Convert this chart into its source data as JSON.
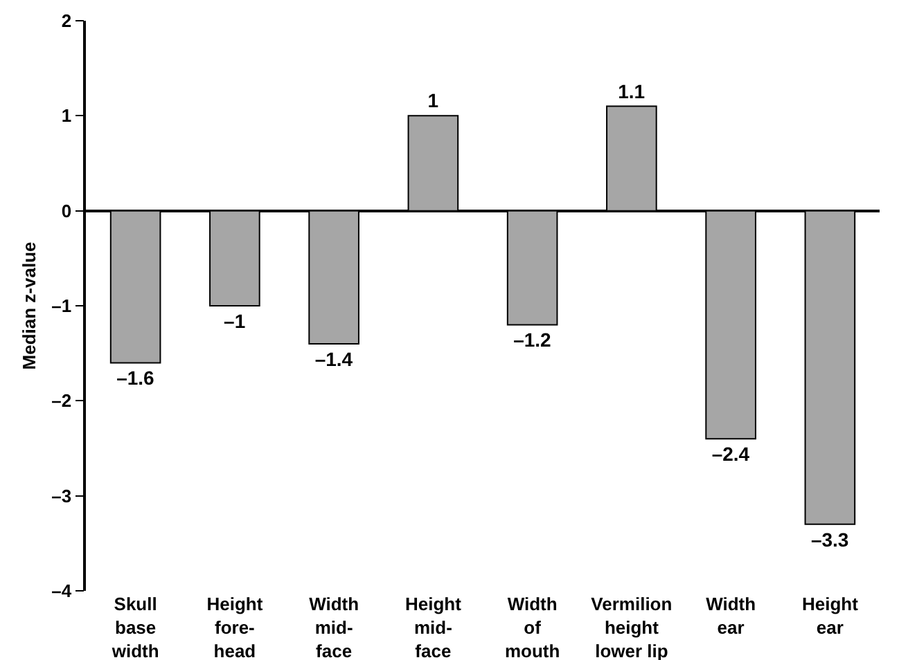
{
  "chart_data": {
    "type": "bar",
    "categories": [
      "Skull\nbase\nwidth",
      "Height\nfore-\nhead",
      "Width\nmid-\nface",
      "Height\nmid-\nface",
      "Width\nof\nmouth",
      "Vermilion\nheight\nlower lip",
      "Width\near",
      "Height\near"
    ],
    "values": [
      -1.6,
      -1,
      -1.4,
      1,
      -1.2,
      1.1,
      -2.4,
      -3.3
    ],
    "value_labels": [
      "–1.6",
      "–1",
      "–1.4",
      "1",
      "–1.2",
      "1.1",
      "–2.4",
      "–3.3"
    ],
    "color": "#a6a6a6",
    "yticks": [
      {
        "value": -4,
        "label": "–4"
      },
      {
        "value": -3,
        "label": "–3"
      },
      {
        "value": -2,
        "label": "–2"
      },
      {
        "value": -1,
        "label": "–1"
      },
      0,
      1,
      2
    ],
    "ylabel": "Median z-value",
    "ylim": [
      -4,
      2
    ]
  }
}
